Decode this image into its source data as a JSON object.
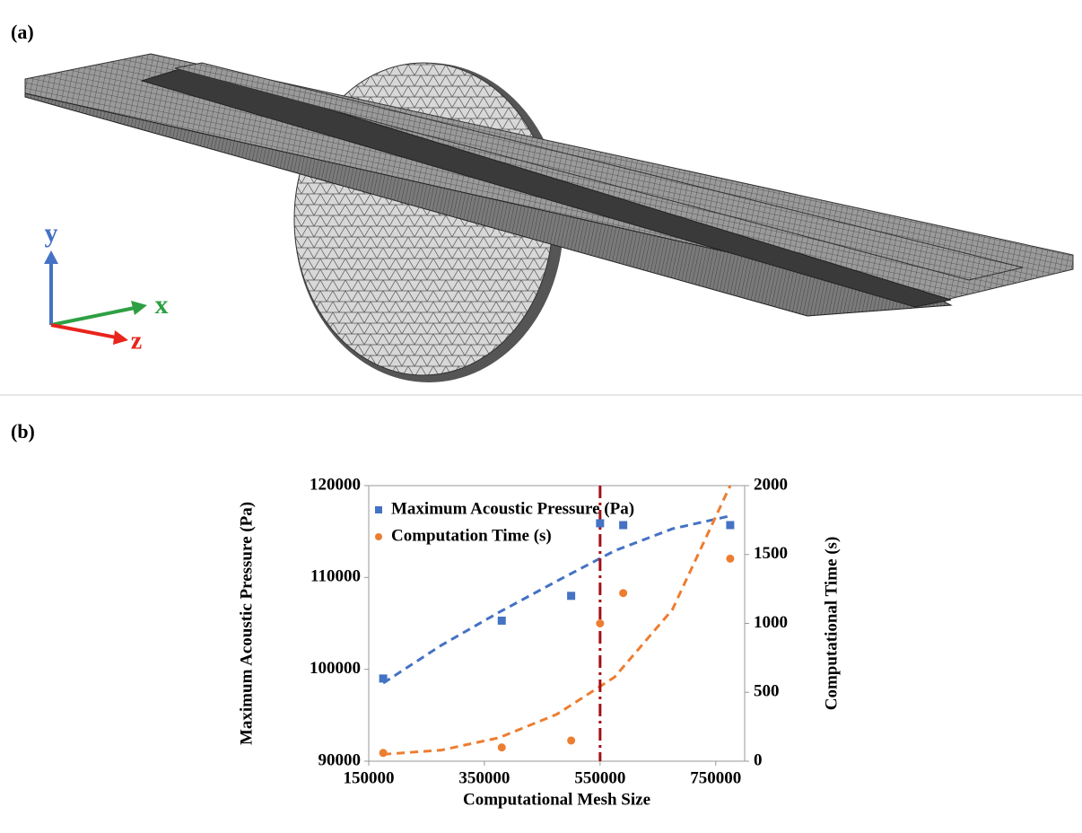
{
  "panel_a": {
    "label": "(a)",
    "axis_labels": {
      "y": "y",
      "x": "x",
      "z": "z"
    }
  },
  "chart_data": {
    "type": "scatter",
    "panel_label": "(b)",
    "x_label": "Computational Mesh Size",
    "y_label": "Maximum Acoustic Pressure (Pa)",
    "y2_label": "Computational Time (s)",
    "xlim": [
      150000,
      800000
    ],
    "xticks": [
      150000,
      350000,
      550000,
      750000
    ],
    "ylim": [
      90000,
      120000
    ],
    "yticks": [
      90000,
      100000,
      110000,
      120000
    ],
    "y2lim": [
      0,
      2000
    ],
    "y2ticks": [
      0,
      500,
      1000,
      1500,
      2000
    ],
    "grid": false,
    "legend": "top",
    "x": [
      175000,
      380000,
      500000,
      550000,
      590000,
      775000
    ],
    "series": [
      {
        "name": "Maximum Acoustic Pressure (Pa)",
        "color": "#4472c4",
        "marker": "square",
        "values": [
          99000,
          105300,
          108000,
          115900,
          115700,
          115700
        ]
      },
      {
        "name": "Computation Time (s)",
        "color": "#ed7d31",
        "marker": "circle",
        "axis": "y2",
        "values": [
          60,
          100,
          150,
          1000,
          1220,
          1470
        ]
      }
    ],
    "trend_x": [
      175000,
      275000,
      375000,
      475000,
      575000,
      675000,
      775000
    ],
    "trendlines": [
      {
        "color": "#4472c4",
        "values": [
          98500,
          102600,
          106200,
          109600,
          112900,
          115300,
          116700
        ]
      },
      {
        "color": "#ed7d31",
        "axis": "y2",
        "values": [
          50,
          80,
          170,
          340,
          610,
          1100,
          2000
        ]
      }
    ],
    "vline": {
      "x": 550000,
      "color": "#a50f15"
    }
  }
}
